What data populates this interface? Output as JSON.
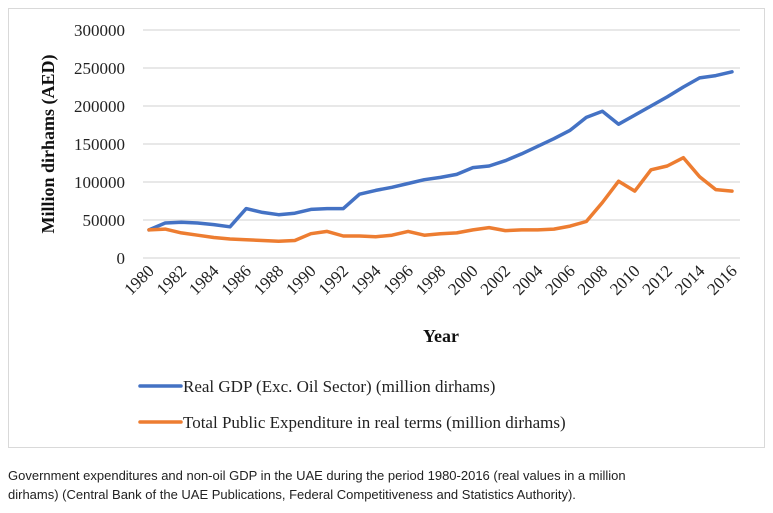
{
  "chart_data": {
    "type": "line",
    "title": "",
    "xlabel": "Year",
    "ylabel": "Million dirhams (AED)",
    "ylim": [
      0,
      300000
    ],
    "yticks": [
      0,
      50000,
      100000,
      150000,
      200000,
      250000,
      300000
    ],
    "ytick_labels": [
      "0",
      "50000",
      "100000",
      "150000",
      "200000",
      "250000",
      "300000"
    ],
    "xtick_labels": [
      "1980",
      "1982",
      "1984",
      "1986",
      "1988",
      "1990",
      "1992",
      "1994",
      "1996",
      "1998",
      "2000",
      "2002",
      "2004",
      "2006",
      "2008",
      "2010",
      "2012",
      "2014",
      "2016"
    ],
    "grid": true,
    "legend_position": "bottom",
    "x": [
      1980,
      1981,
      1982,
      1983,
      1984,
      1985,
      1986,
      1987,
      1988,
      1989,
      1990,
      1991,
      1992,
      1993,
      1994,
      1995,
      1996,
      1997,
      1998,
      1999,
      2000,
      2001,
      2002,
      2003,
      2004,
      2005,
      2006,
      2007,
      2008,
      2009,
      2010,
      2011,
      2012,
      2013,
      2014,
      2015,
      2016
    ],
    "series": [
      {
        "name": "Real GDP (Exc. Oil Sector) (million dirhams)",
        "color": "#4472c4",
        "values": [
          37000,
          46000,
          47000,
          46000,
          44000,
          41000,
          65000,
          60000,
          57000,
          59000,
          64000,
          65000,
          65000,
          84000,
          89000,
          93000,
          98000,
          103000,
          106000,
          110000,
          119000,
          121000,
          128000,
          137000,
          147000,
          157000,
          168000,
          185000,
          193000,
          176000,
          188000,
          200000,
          212000,
          225000,
          237000,
          240000,
          245000
        ]
      },
      {
        "name": "Total Public Expenditure in real terms (million dirhams)",
        "color": "#ed7d31",
        "values": [
          37000,
          38000,
          33000,
          30000,
          27000,
          25000,
          24000,
          23000,
          22000,
          23000,
          32000,
          35000,
          29000,
          29000,
          28000,
          30000,
          35000,
          30000,
          32000,
          33000,
          37000,
          40000,
          36000,
          37000,
          37000,
          38000,
          42000,
          48000,
          73000,
          101000,
          88000,
          116000,
          121000,
          132000,
          107000,
          90000,
          88000
        ]
      }
    ]
  },
  "caption": {
    "line1": "Government expenditures and non-oil GDP in the UAE during the period 1980-2016 (real values in a million",
    "line2": "dirhams) (Central Bank of the UAE Publications, Federal Competitiveness and Statistics Authority)."
  }
}
